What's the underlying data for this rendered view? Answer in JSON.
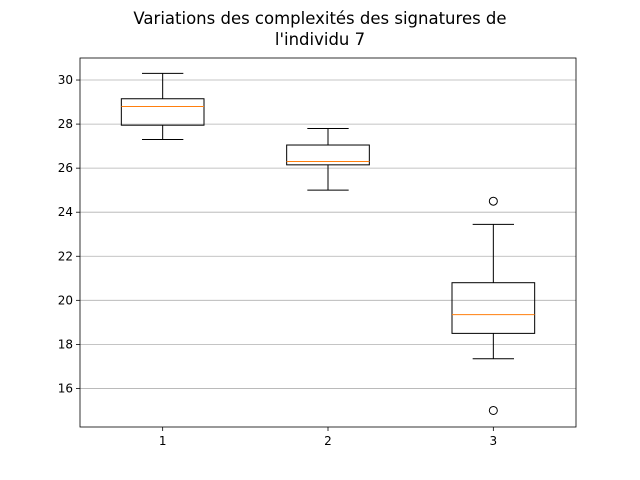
{
  "chart_data": {
    "type": "box",
    "title_lines": [
      "Variations des complexités des signatures de",
      "l'individu 7"
    ],
    "xlabel": "",
    "ylabel": "",
    "categories": [
      "1",
      "2",
      "3"
    ],
    "yticks": [
      "16",
      "18",
      "20",
      "22",
      "24",
      "26",
      "28",
      "30"
    ],
    "ylim": [
      14.25,
      31.0
    ],
    "grid": "y",
    "boxes": [
      {
        "category": "1",
        "whisker_low": 27.3,
        "q1": 27.95,
        "median": 28.8,
        "q3": 29.15,
        "whisker_high": 30.3,
        "outliers": []
      },
      {
        "category": "2",
        "whisker_low": 25.0,
        "q1": 26.15,
        "median": 26.3,
        "q3": 27.05,
        "whisker_high": 27.8,
        "outliers": []
      },
      {
        "category": "3",
        "whisker_low": 17.35,
        "q1": 18.5,
        "median": 19.35,
        "q3": 20.8,
        "whisker_high": 23.45,
        "outliers": [
          24.5,
          15.0
        ]
      }
    ],
    "colors": {
      "box": "#000000",
      "median": "#ff7f0e",
      "grid": "#b0b0b0"
    }
  }
}
